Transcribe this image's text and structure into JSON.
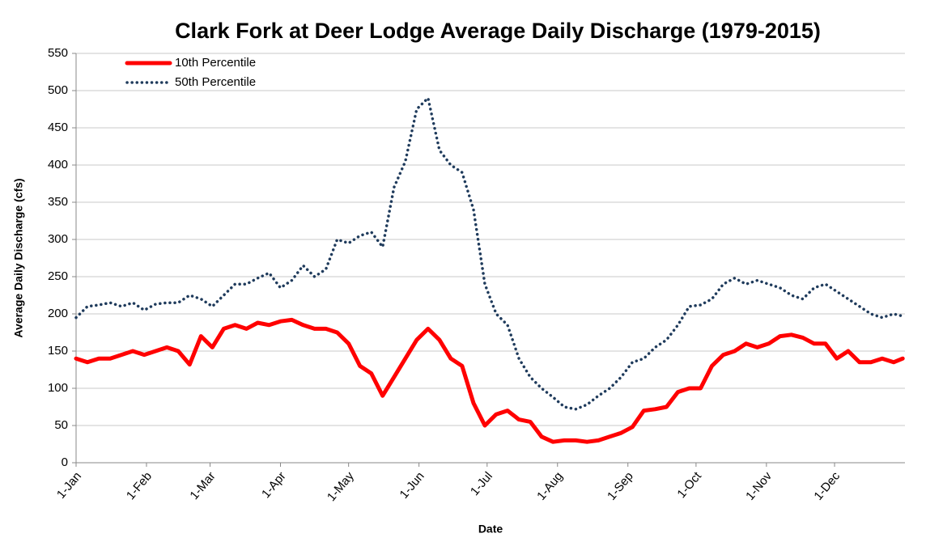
{
  "chart_data": {
    "type": "line",
    "title": "Clark Fork at Deer Lodge Average Daily Discharge (1979-2015)",
    "x_label": "Date",
    "y_label": "Average Daily Discharge (cfs)",
    "x": [
      1,
      6,
      11,
      16,
      21,
      26,
      31,
      36,
      41,
      46,
      51,
      56,
      61,
      66,
      71,
      76,
      81,
      86,
      91,
      96,
      101,
      106,
      111,
      116,
      121,
      126,
      131,
      136,
      141,
      146,
      151,
      156,
      161,
      166,
      171,
      176,
      181,
      186,
      191,
      196,
      201,
      206,
      211,
      216,
      221,
      226,
      231,
      236,
      241,
      246,
      251,
      256,
      261,
      266,
      271,
      276,
      281,
      286,
      291,
      296,
      301,
      306,
      311,
      316,
      321,
      326,
      331,
      336,
      341,
      346,
      351,
      356,
      361,
      365
    ],
    "series": [
      {
        "name": "10th Percentile",
        "color": "#ff0000",
        "style": "solid",
        "values": [
          140,
          135,
          140,
          140,
          145,
          150,
          145,
          150,
          155,
          150,
          132,
          170,
          155,
          180,
          185,
          180,
          188,
          185,
          190,
          192,
          185,
          180,
          180,
          175,
          160,
          130,
          120,
          90,
          115,
          140,
          165,
          180,
          165,
          140,
          130,
          80,
          50,
          65,
          70,
          58,
          55,
          35,
          28,
          30,
          30,
          28,
          30,
          35,
          40,
          48,
          70,
          72,
          75,
          95,
          100,
          100,
          130,
          145,
          150,
          160,
          155,
          160,
          170,
          172,
          168,
          160,
          160,
          140,
          150,
          135,
          135,
          140,
          135,
          140
        ]
      },
      {
        "name": "50th Percentile",
        "color": "#1f3b5c",
        "style": "dotted",
        "values": [
          195,
          210,
          212,
          215,
          210,
          215,
          205,
          213,
          215,
          215,
          225,
          220,
          210,
          225,
          240,
          240,
          248,
          255,
          235,
          245,
          265,
          250,
          260,
          300,
          295,
          305,
          310,
          290,
          370,
          405,
          475,
          490,
          420,
          400,
          390,
          340,
          240,
          200,
          185,
          140,
          115,
          100,
          88,
          75,
          72,
          78,
          90,
          100,
          115,
          135,
          140,
          155,
          165,
          185,
          210,
          212,
          220,
          240,
          248,
          240,
          245,
          240,
          235,
          225,
          220,
          235,
          240,
          230,
          220,
          210,
          200,
          195,
          200,
          197
        ]
      }
    ],
    "xlim": [
      1,
      366
    ],
    "xticks": [
      {
        "value": 1,
        "label": "1-Jan"
      },
      {
        "value": 32,
        "label": "1-Feb"
      },
      {
        "value": 60,
        "label": "1-Mar"
      },
      {
        "value": 91,
        "label": "1-Apr"
      },
      {
        "value": 121,
        "label": "1-May"
      },
      {
        "value": 152,
        "label": "1-Jun"
      },
      {
        "value": 182,
        "label": "1-Jul"
      },
      {
        "value": 213,
        "label": "1-Aug"
      },
      {
        "value": 244,
        "label": "1-Sep"
      },
      {
        "value": 274,
        "label": "1-Oct"
      },
      {
        "value": 305,
        "label": "1-Nov"
      },
      {
        "value": 335,
        "label": "1-Dec"
      }
    ],
    "ylim": [
      0,
      550
    ],
    "yticks": [
      0,
      50,
      100,
      150,
      200,
      250,
      300,
      350,
      400,
      450,
      500,
      550
    ],
    "grid": true,
    "legend": "top-left"
  }
}
